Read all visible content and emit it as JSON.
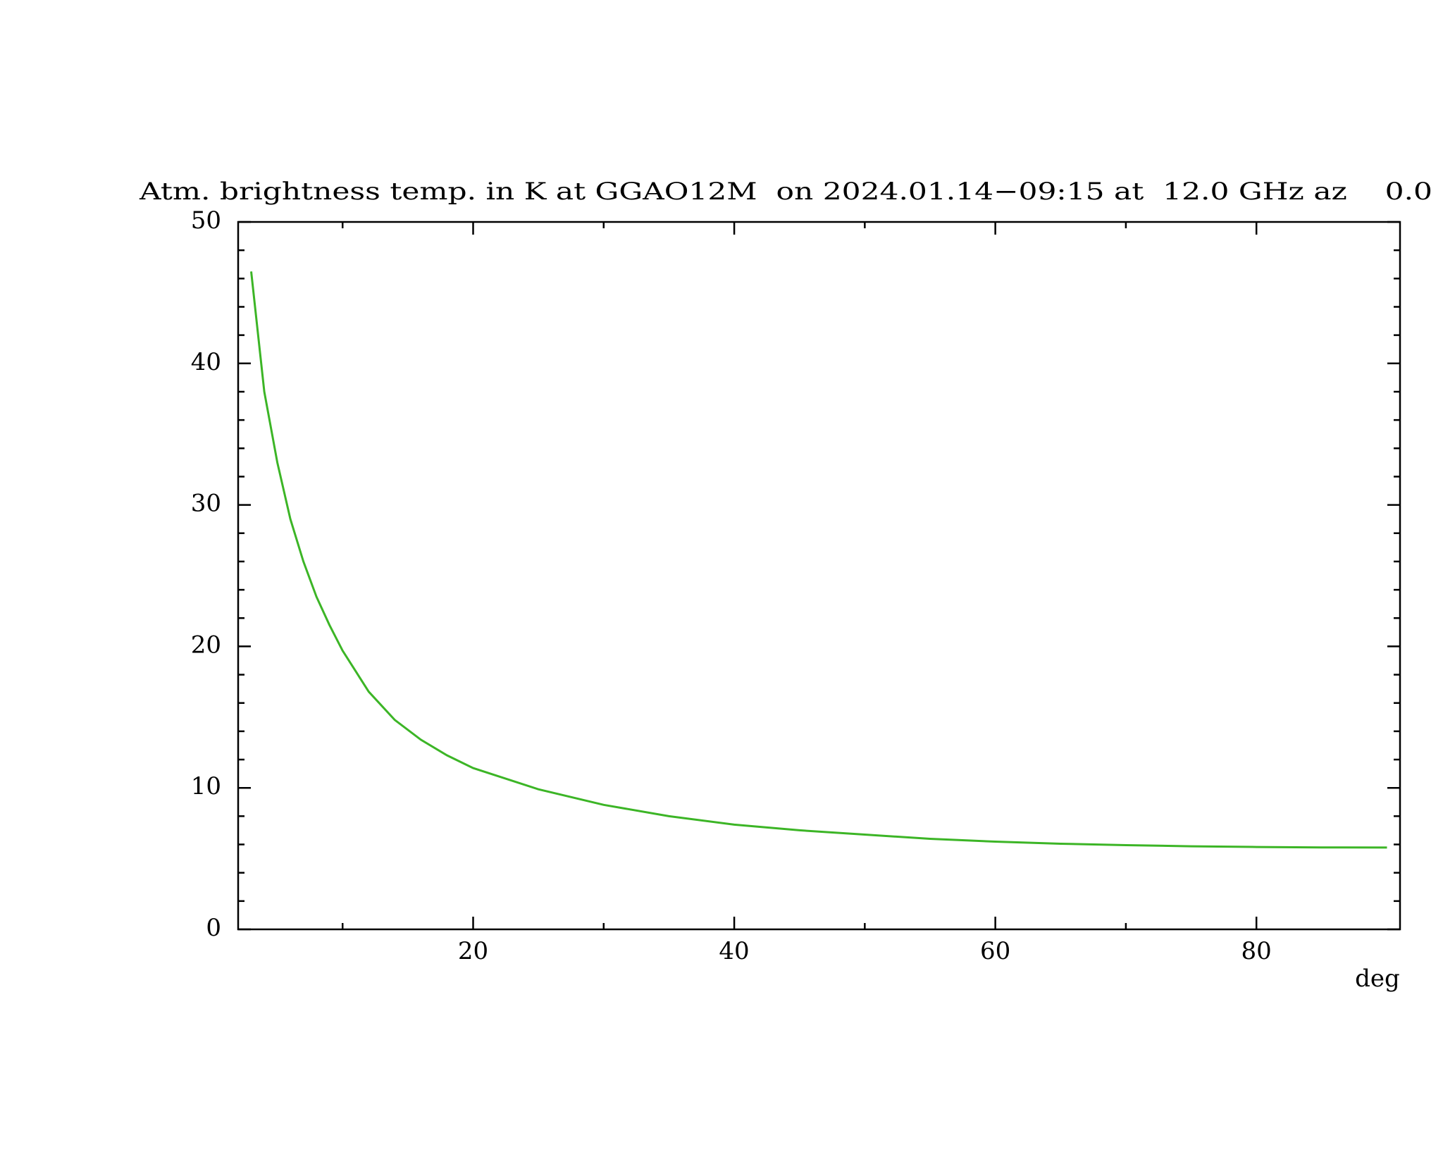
{
  "chart_data": {
    "type": "line",
    "title": "Atm. brightness temp. in K at GGAO12M  on 2024.01.14−09:15 at  12.0 GHz az    0.0",
    "x_label": "deg",
    "x": [
      3,
      4,
      5,
      6,
      7,
      8,
      9,
      10,
      12,
      14,
      16,
      18,
      20,
      25,
      30,
      35,
      40,
      45,
      50,
      55,
      60,
      65,
      70,
      75,
      80,
      85,
      90
    ],
    "values": [
      46.5,
      38,
      33,
      29,
      26,
      23.5,
      21.5,
      19.7,
      16.8,
      14.8,
      13.4,
      12.3,
      11.4,
      9.9,
      8.8,
      8.0,
      7.4,
      7.0,
      6.7,
      6.4,
      6.2,
      6.05,
      5.95,
      5.87,
      5.82,
      5.79,
      5.78
    ],
    "color": "#3cb526",
    "xlim": [
      2,
      91
    ],
    "xticks": [
      20,
      40,
      60,
      80
    ],
    "xminorticks": [
      10,
      30,
      50,
      70
    ],
    "ylim": [
      0,
      50
    ],
    "yticks": [
      0,
      10,
      20,
      30,
      40,
      50
    ],
    "yminorticks": [
      2,
      4,
      6,
      8,
      12,
      14,
      16,
      18,
      22,
      24,
      26,
      28,
      32,
      34,
      36,
      38,
      42,
      44,
      46,
      48
    ]
  }
}
